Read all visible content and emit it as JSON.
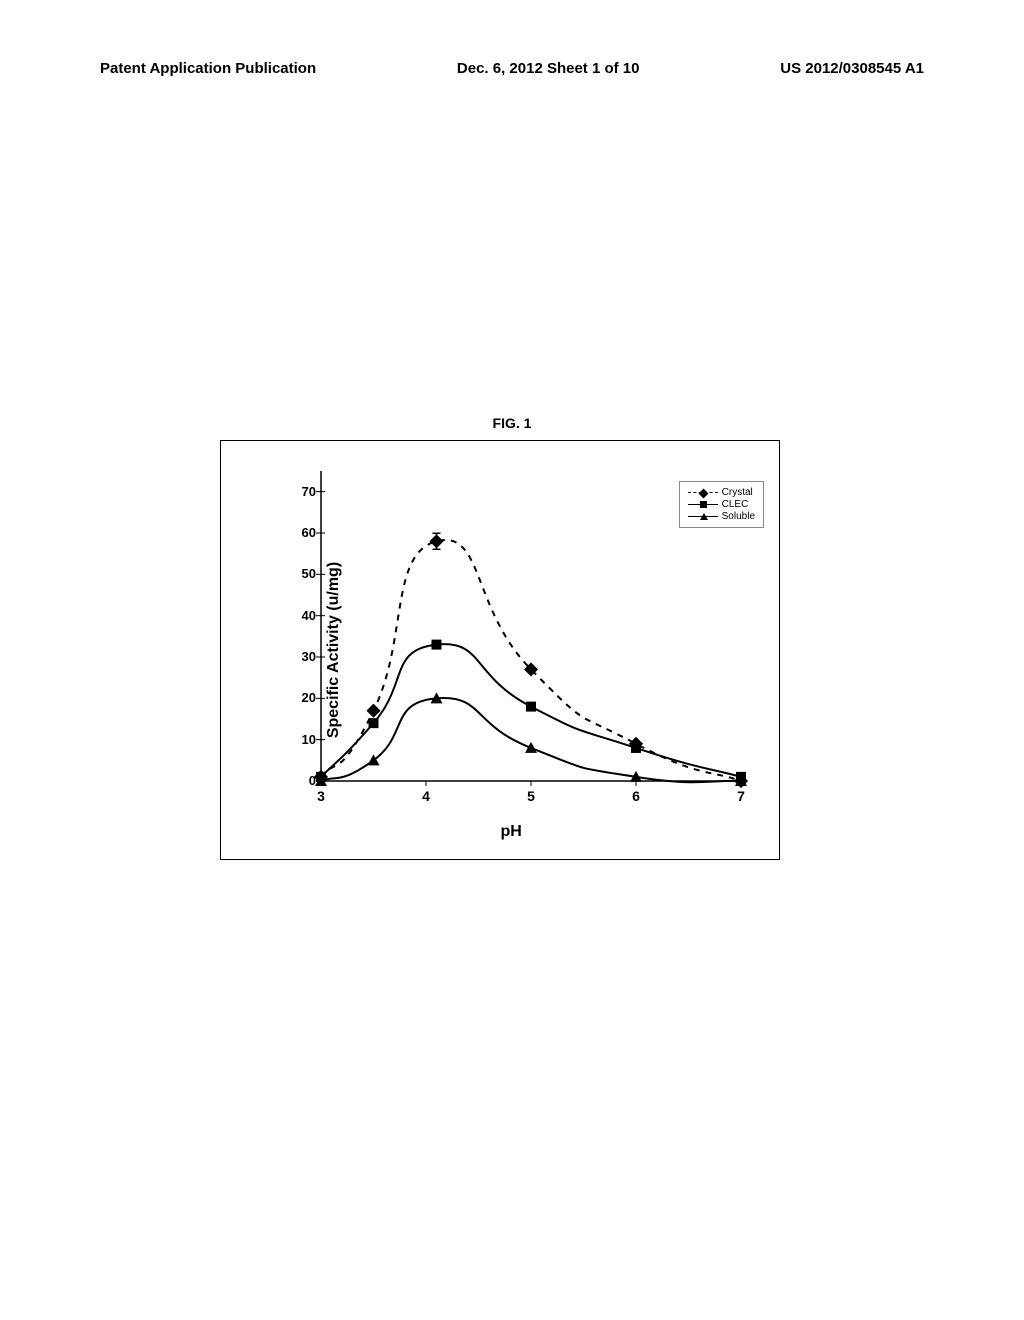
{
  "header": {
    "left": "Patent Application Publication",
    "center": "Dec. 6, 2012  Sheet 1 of 10",
    "right": "US 2012/0308545 A1"
  },
  "figure": {
    "title": "FIG. 1",
    "chart": {
      "type": "line",
      "xlabel": "pH",
      "ylabel": "Specific Activity (u/mg)",
      "xlim": [
        3,
        7
      ],
      "ylim": [
        0,
        75
      ],
      "xticks": [
        3,
        4,
        5,
        6,
        7
      ],
      "yticks": [
        0,
        10,
        20,
        30,
        40,
        50,
        60,
        70
      ],
      "series": [
        {
          "name": "Crystal",
          "marker": "diamond",
          "line_style": "dashed",
          "color": "#000000",
          "data": [
            {
              "x": 3,
              "y": 1
            },
            {
              "x": 3.5,
              "y": 17
            },
            {
              "x": 4.1,
              "y": 58
            },
            {
              "x": 5,
              "y": 27
            },
            {
              "x": 6,
              "y": 9
            },
            {
              "x": 7,
              "y": 0
            }
          ]
        },
        {
          "name": "CLEC",
          "marker": "square",
          "line_style": "solid",
          "color": "#000000",
          "data": [
            {
              "x": 3,
              "y": 1
            },
            {
              "x": 3.5,
              "y": 14
            },
            {
              "x": 4.1,
              "y": 33
            },
            {
              "x": 5,
              "y": 18
            },
            {
              "x": 6,
              "y": 8
            },
            {
              "x": 7,
              "y": 1
            }
          ]
        },
        {
          "name": "Soluble",
          "marker": "triangle",
          "line_style": "solid",
          "color": "#000000",
          "data": [
            {
              "x": 3,
              "y": 0
            },
            {
              "x": 3.5,
              "y": 5
            },
            {
              "x": 4.1,
              "y": 20
            },
            {
              "x": 5,
              "y": 8
            },
            {
              "x": 6,
              "y": 1
            },
            {
              "x": 7,
              "y": 0
            }
          ]
        }
      ],
      "legend_position": "top-right",
      "background_color": "#ffffff",
      "axis_color": "#000000",
      "tick_color": "#cccccc",
      "label_fontsize": 16,
      "tick_fontsize": 13
    }
  }
}
